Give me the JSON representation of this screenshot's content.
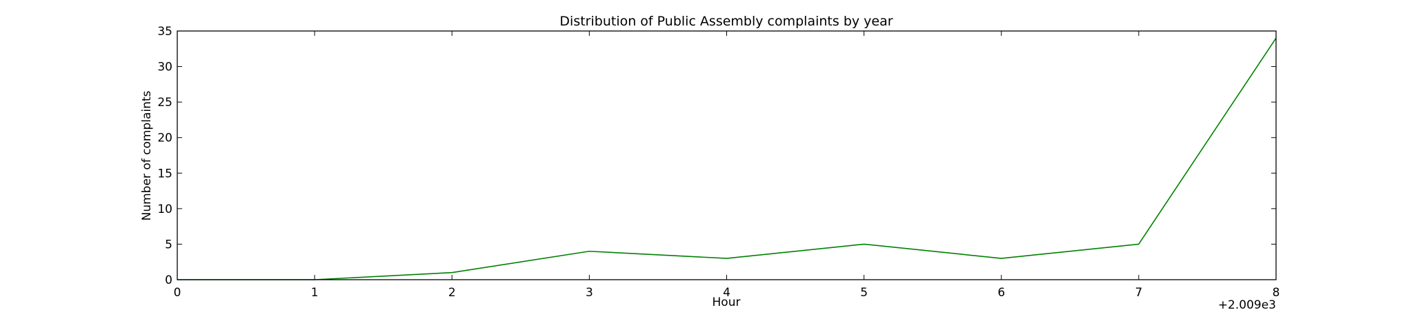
{
  "chart_data": {
    "type": "line",
    "title": "Distribution of  Public Assembly complaints by year",
    "xlabel": "Hour",
    "ylabel": "Number of complaints",
    "x_offset_label": "+2.009e3",
    "xlim": [
      0,
      8
    ],
    "ylim": [
      0,
      35
    ],
    "x_ticks": [
      0,
      1,
      2,
      3,
      4,
      5,
      6,
      7,
      8
    ],
    "y_ticks": [
      0,
      5,
      10,
      15,
      20,
      25,
      30,
      35
    ],
    "grid": false,
    "series": [
      {
        "color": "#008000",
        "x": [
          0,
          1,
          2,
          3,
          4,
          5,
          6,
          7,
          8
        ],
        "y": [
          0,
          0,
          1,
          4,
          3,
          5,
          3,
          5,
          34
        ]
      }
    ]
  }
}
